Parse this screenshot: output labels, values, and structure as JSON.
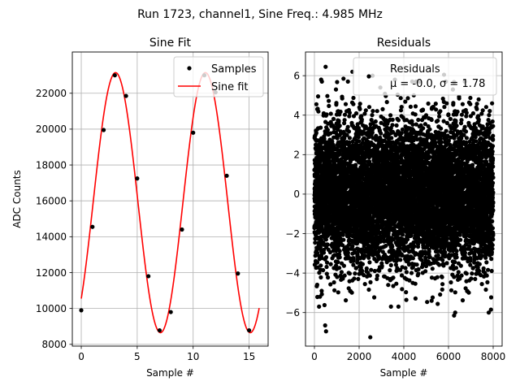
{
  "figure": {
    "suptitle": "Run 1723, channel1, Sine Freq.: 4.985 MHz"
  },
  "chart_data": [
    {
      "type": "scatter",
      "title": "Sine Fit",
      "xlabel": "Sample #",
      "ylabel": "ADC Counts",
      "xlim": [
        -0.8,
        16.7
      ],
      "ylim": [
        7900,
        24300
      ],
      "xticks": [
        0,
        5,
        10,
        15
      ],
      "yticks": [
        8000,
        10000,
        12000,
        14000,
        16000,
        18000,
        20000,
        22000
      ],
      "grid": true,
      "legend_position": "upper-right",
      "series": [
        {
          "name": "Samples",
          "kind": "points",
          "color": "#000000",
          "x": [
            0,
            1,
            2,
            3,
            4,
            5,
            6,
            7,
            8,
            9,
            10,
            11,
            12,
            13,
            14,
            15
          ],
          "y": [
            9900,
            14550,
            19950,
            23000,
            21850,
            17250,
            11800,
            8780,
            9800,
            14400,
            19800,
            23000,
            22050,
            17400,
            11950,
            8780
          ]
        },
        {
          "name": "Sine fit",
          "kind": "line",
          "color": "#ff0000",
          "model": {
            "offset": 15900,
            "amplitude": 7250,
            "period": 8.024,
            "phase_offset_samples": 1.06,
            "x_start": 0,
            "x_end": 15.9
          }
        }
      ]
    },
    {
      "type": "scatter",
      "title": "Residuals",
      "xlabel": "Sample #",
      "ylabel": "",
      "xlim": [
        -400,
        8400
      ],
      "ylim": [
        -7.7,
        7.2
      ],
      "xticks": [
        0,
        2000,
        4000,
        6000,
        8000
      ],
      "yticks": [
        -6,
        -4,
        -2,
        0,
        2,
        4,
        6
      ],
      "grid": true,
      "legend_position": "upper-right",
      "series": [
        {
          "name": "Residuals",
          "legend_stats": "μ = -0.0, σ = 1.78",
          "color": "#000000",
          "n_points": 8000,
          "mean": 0.0,
          "std": 1.78,
          "x_range": [
            0,
            7999
          ],
          "notable_points": [
            [
              500,
              6.45
            ],
            [
              480,
              -6.65
            ],
            [
              520,
              -6.95
            ],
            [
              2500,
              -7.25
            ],
            [
              2600,
              6.0
            ],
            [
              1700,
              6.2
            ],
            [
              5800,
              6.05
            ],
            [
              6300,
              -6.0
            ],
            [
              6250,
              -6.15
            ],
            [
              7900,
              -5.85
            ],
            [
              7800,
              -6.0
            ],
            [
              300,
              5.8
            ],
            [
              1300,
              5.85
            ],
            [
              3600,
              5.8
            ],
            [
              7350,
              4.8
            ],
            [
              7950,
              4.6
            ]
          ]
        }
      ]
    }
  ]
}
